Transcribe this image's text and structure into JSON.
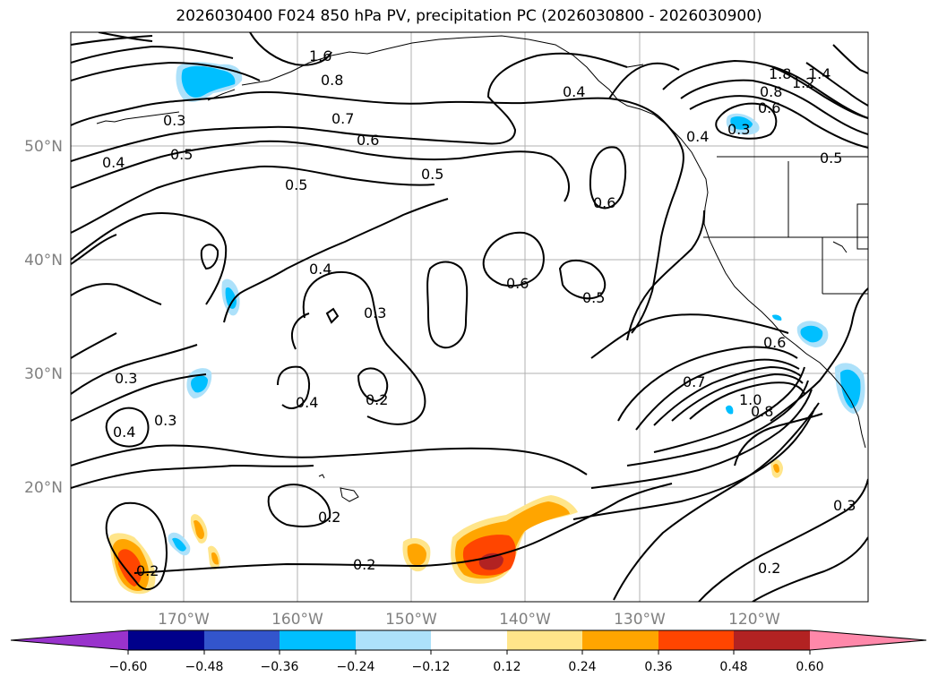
{
  "title": "2026030400 F024 850 hPa PV, precipitation PC (2026030800 - 2026030900)",
  "lat_labels": [
    "50°N",
    "40°N",
    "30°N",
    "20°N"
  ],
  "lon_labels": [
    "170°W",
    "160°W",
    "150°W",
    "140°W",
    "130°W",
    "120°W"
  ],
  "contour_labels": [
    "1.6",
    "0.8",
    "0.4",
    "0.3",
    "0.7",
    "0.6",
    "0.5",
    "0.4",
    "0.5",
    "0.5",
    "0.6",
    "1.8",
    "1.2",
    "1.4",
    "0.8",
    "0.6",
    "0.4",
    "0.3",
    "0.5",
    "0.4",
    "0.6",
    "0.5",
    "0.3",
    "0.3",
    "0.4",
    "0.3",
    "0.4",
    "0.2",
    "0.7",
    "0.6",
    "1.0",
    "0.8",
    "0.2",
    "0.2",
    "0.2",
    "0.2",
    "0.3"
  ],
  "colorbar": {
    "ticks": [
      "−0.60",
      "−0.48",
      "−0.36",
      "−0.24",
      "−0.12",
      "0.12",
      "0.24",
      "0.36",
      "0.48",
      "0.60"
    ],
    "colors": {
      "lt_neg060": "#9933CC",
      "neg060_neg048": "#00008B",
      "neg048_neg036": "#3355CC",
      "neg036_neg024": "#00BFFF",
      "neg024_neg012": "#ADE1FA",
      "neutral": "#FFFFFF",
      "p012_p024": "#FFE58A",
      "p024_p036": "#FFA500",
      "p036_p048": "#FF4500",
      "p048_p060": "#B22222",
      "gt_p060": "#FF88AA"
    }
  }
}
